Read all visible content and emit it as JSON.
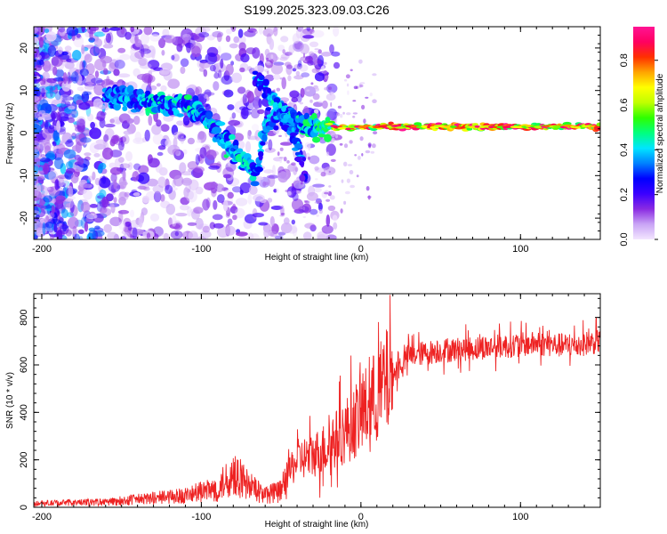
{
  "title": "S199.2025.323.09.03.C26",
  "chart_data": [
    {
      "type": "heatmap",
      "xlabel": "Height of straight line (km)",
      "ylabel": "Frequency (Hz)",
      "xlim": [
        -205,
        150
      ],
      "ylim": [
        -25,
        25
      ],
      "xticks": [
        -200,
        -100,
        0,
        100
      ],
      "yticks": [
        -20,
        -10,
        0,
        10,
        20
      ],
      "colorbar": {
        "label": "Normalized spectral amplitude",
        "range": [
          0,
          0.95
        ],
        "ticks": [
          "0.0",
          "0.2",
          "0.4",
          "0.6",
          "0.8"
        ],
        "tick_values": [
          0,
          0.2,
          0.4,
          0.6,
          0.8
        ],
        "colors": [
          "#f3e6ff",
          "#c9a4f5",
          "#8a2be2",
          "#3b00ff",
          "#0000ff",
          "#0080ff",
          "#00e5ff",
          "#00ff7f",
          "#2eff00",
          "#bfff00",
          "#ffff00",
          "#ffa500",
          "#ff3000",
          "#ff0060",
          "#ff1493"
        ]
      },
      "ridge": [
        {
          "x": -160,
          "y": 9,
          "amp": 0.35
        },
        {
          "x": -145,
          "y": 8,
          "amp": 0.4
        },
        {
          "x": -130,
          "y": 7,
          "amp": 0.45
        },
        {
          "x": -115,
          "y": 7,
          "amp": 0.45
        },
        {
          "x": -100,
          "y": 5,
          "amp": 0.45
        },
        {
          "x": -90,
          "y": 0,
          "amp": 0.45
        },
        {
          "x": -80,
          "y": -4,
          "amp": 0.45
        },
        {
          "x": -70,
          "y": -8,
          "amp": 0.45
        },
        {
          "x": -65,
          "y": -10,
          "amp": 0.4
        },
        {
          "x": -60,
          "y": 2,
          "amp": 0.4
        },
        {
          "x": -50,
          "y": 5,
          "amp": 0.4
        },
        {
          "x": -40,
          "y": 3,
          "amp": 0.45
        },
        {
          "x": -30,
          "y": 1,
          "amp": 0.55
        },
        {
          "x": -20,
          "y": 2,
          "amp": 0.65
        },
        {
          "x": -10,
          "y": 1,
          "amp": 0.75
        },
        {
          "x": 0,
          "y": 1.5,
          "amp": 0.8
        },
        {
          "x": 20,
          "y": 1.5,
          "amp": 0.9
        },
        {
          "x": 50,
          "y": 1.5,
          "amp": 0.9
        },
        {
          "x": 80,
          "y": 1.5,
          "amp": 0.9
        },
        {
          "x": 100,
          "y": 1.5,
          "amp": 0.9
        },
        {
          "x": 150,
          "y": 1.5,
          "amp": 0.9
        }
      ],
      "branch": [
        {
          "x": -65,
          "y": 13,
          "amp": 0.3
        },
        {
          "x": -55,
          "y": 8,
          "amp": 0.35
        },
        {
          "x": -45,
          "y": 2,
          "amp": 0.35
        },
        {
          "x": -38,
          "y": -5,
          "amp": 0.3
        },
        {
          "x": -35,
          "y": -11,
          "amp": 0.25
        }
      ]
    },
    {
      "type": "line",
      "xlabel": "Height of straight line (km)",
      "ylabel": "SNR (10 * v/v)",
      "xlim": [
        -205,
        150
      ],
      "ylim": [
        0,
        900
      ],
      "xticks": [
        -200,
        -100,
        0,
        100
      ],
      "yticks": [
        0,
        200,
        400,
        600,
        800
      ],
      "color": "#ee2222",
      "trend": [
        {
          "x": -205,
          "y": 15
        },
        {
          "x": -160,
          "y": 20
        },
        {
          "x": -140,
          "y": 30
        },
        {
          "x": -110,
          "y": 45
        },
        {
          "x": -90,
          "y": 70
        },
        {
          "x": -80,
          "y": 130
        },
        {
          "x": -70,
          "y": 80
        },
        {
          "x": -60,
          "y": 50
        },
        {
          "x": -50,
          "y": 60
        },
        {
          "x": -45,
          "y": 140
        },
        {
          "x": -40,
          "y": 200
        },
        {
          "x": -30,
          "y": 220
        },
        {
          "x": -20,
          "y": 260
        },
        {
          "x": -10,
          "y": 320
        },
        {
          "x": 0,
          "y": 390
        },
        {
          "x": 10,
          "y": 470
        },
        {
          "x": 20,
          "y": 560
        },
        {
          "x": 30,
          "y": 640
        },
        {
          "x": 50,
          "y": 660
        },
        {
          "x": 70,
          "y": 670
        },
        {
          "x": 90,
          "y": 680
        },
        {
          "x": 110,
          "y": 690
        },
        {
          "x": 130,
          "y": 680
        },
        {
          "x": 150,
          "y": 700
        }
      ]
    }
  ]
}
